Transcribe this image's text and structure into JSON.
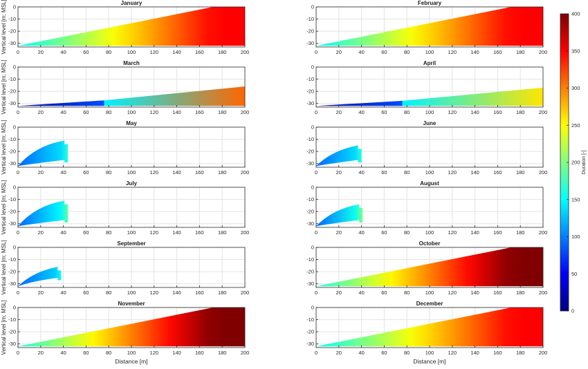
{
  "chart_data": {
    "type": "area",
    "xlabel": "Distance [m]",
    "ylabel": "Vertical level [m; MSL]",
    "xlim": [
      0,
      200
    ],
    "ylim": [
      -33,
      0
    ],
    "xticks": [
      0,
      20,
      40,
      60,
      80,
      100,
      120,
      140,
      160,
      180,
      200
    ],
    "yticks": [
      0,
      -10,
      -20,
      -30
    ],
    "grid": true,
    "colorbar": {
      "label": "Duration [-]",
      "min": 0,
      "max": 400,
      "ticks": [
        0,
        50,
        100,
        150,
        200,
        250,
        300,
        350,
        400
      ],
      "colormap": "jet"
    },
    "panels": [
      {
        "title": "January",
        "shape": "ramp",
        "extent": 200,
        "x_break": 172,
        "top": 0,
        "d_start": 150,
        "d_end": 350,
        "d_max": 350
      },
      {
        "title": "February",
        "shape": "ramp",
        "extent": 200,
        "x_break": 172,
        "top": 0,
        "d_start": 150,
        "d_end": 350,
        "d_max": 350
      },
      {
        "title": "March",
        "shape": "wedge",
        "extent": 200,
        "x_step": 76,
        "top": -16,
        "d_start": 10,
        "d_step": 80,
        "d_low": 145,
        "d_end": 310
      },
      {
        "title": "April",
        "shape": "wedge",
        "extent": 200,
        "x_step": 76,
        "top": -17,
        "d_start": 10,
        "d_step": 80,
        "d_low": 145,
        "d_end": 260
      },
      {
        "title": "May",
        "shape": "plume",
        "extent": 44,
        "top": -14,
        "bottom": -29,
        "d_start": 90,
        "d_end": 165
      },
      {
        "title": "June",
        "shape": "plume",
        "extent": 40,
        "top": -18,
        "bottom": -29,
        "d_start": 90,
        "d_end": 165
      },
      {
        "title": "July",
        "shape": "plume",
        "extent": 44,
        "top": -14,
        "bottom": -29,
        "d_start": 90,
        "d_end": 185
      },
      {
        "title": "August",
        "shape": "plume",
        "extent": 41,
        "top": -17,
        "bottom": -29,
        "d_start": 90,
        "d_end": 200
      },
      {
        "title": "September",
        "shape": "plume",
        "extent": 38,
        "top": -19,
        "bottom": -27,
        "d_start": 90,
        "d_end": 155
      },
      {
        "title": "October",
        "shape": "ramp",
        "extent": 200,
        "x_break": 172,
        "top": 0,
        "d_start": 160,
        "d_end": 400,
        "d_max": 400
      },
      {
        "title": "November",
        "shape": "ramp",
        "extent": 200,
        "x_break": 172,
        "top": 0,
        "d_start": 160,
        "d_end": 400,
        "d_max": 400
      },
      {
        "title": "December",
        "shape": "ramp",
        "extent": 200,
        "x_break": 172,
        "top": 0,
        "d_start": 150,
        "d_end": 350,
        "d_max": 350
      }
    ]
  }
}
